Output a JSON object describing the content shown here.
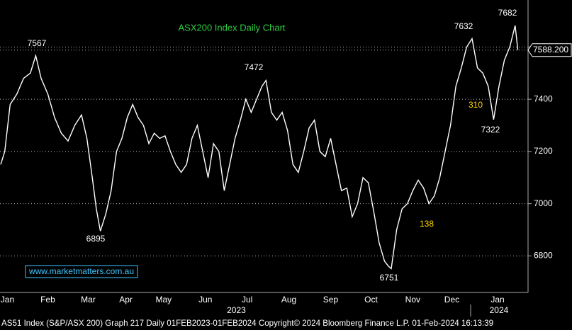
{
  "chart_data": {
    "type": "line",
    "title": "ASX200 Index Daily Chart",
    "title_color": "#2ecc40",
    "watermark": "www.marketmatters.com.au",
    "footer": "AS51 Index (S&P/ASX 200) Graph 217  Daily 01FEB2023-01FEB2024  Copyright© 2024 Bloomberg Finance L.P.  01-Feb-2024 16:13:39",
    "series": [
      {
        "name": "AS51 Index",
        "color": "#ffffff",
        "x": [
          10,
          13,
          17,
          22,
          27,
          32,
          36,
          40,
          45,
          50,
          55,
          60,
          65,
          70,
          74,
          78,
          81,
          84,
          88,
          92,
          96,
          100,
          104,
          108,
          112,
          116,
          120,
          124,
          128,
          132,
          136,
          140,
          144,
          148,
          152,
          156,
          160,
          164,
          168,
          172,
          176,
          180,
          184,
          188,
          192,
          196,
          200,
          204,
          207,
          211,
          215,
          219,
          223,
          227,
          231,
          235,
          239,
          243,
          247,
          251,
          255,
          259,
          263,
          267,
          271,
          275,
          279,
          283,
          287,
          291,
          295,
          298,
          300,
          304,
          308,
          312,
          316,
          320,
          324,
          328,
          332,
          336,
          340,
          344,
          348,
          352,
          356,
          360,
          364,
          368,
          372,
          376,
          380,
          384,
          388,
          392,
          394
        ],
        "values": [
          7150,
          7200,
          7380,
          7420,
          7480,
          7500,
          7567,
          7480,
          7420,
          7330,
          7270,
          7240,
          7300,
          7340,
          7250,
          7100,
          6980,
          6895,
          6960,
          7050,
          7200,
          7250,
          7330,
          7380,
          7330,
          7300,
          7230,
          7270,
          7250,
          7260,
          7200,
          7150,
          7120,
          7150,
          7250,
          7300,
          7200,
          7100,
          7230,
          7200,
          7050,
          7150,
          7250,
          7320,
          7400,
          7350,
          7400,
          7450,
          7472,
          7350,
          7320,
          7350,
          7280,
          7150,
          7120,
          7200,
          7290,
          7320,
          7200,
          7180,
          7250,
          7150,
          7050,
          7060,
          6950,
          7000,
          7100,
          7080,
          6970,
          6850,
          6780,
          6760,
          6751,
          6900,
          6980,
          7000,
          7050,
          7090,
          7060,
          7000,
          7030,
          7100,
          7200,
          7300,
          7450,
          7520,
          7600,
          7632,
          7520,
          7500,
          7450,
          7322,
          7450,
          7550,
          7600,
          7682,
          7588.2
        ]
      }
    ],
    "last_value": {
      "value": 7588.2,
      "label": "7588.200"
    },
    "annotations": [
      {
        "text": "7567",
        "color": "#ffffff"
      },
      {
        "text": "6895",
        "color": "#ffffff"
      },
      {
        "text": "7472",
        "color": "#ffffff"
      },
      {
        "text": "6751",
        "color": "#ffffff"
      },
      {
        "text": "7632",
        "color": "#ffffff"
      },
      {
        "text": "7682",
        "color": "#ffffff"
      },
      {
        "text": "7322",
        "color": "#ffffff"
      },
      {
        "text": "310",
        "color": "#ffd700"
      },
      {
        "text": "138",
        "color": "#ffd700"
      }
    ],
    "xlim": [
      9.5,
      401.6
    ],
    "xticks": [
      {
        "value": 15,
        "label": "Jan"
      },
      {
        "value": 45,
        "label": "Feb"
      },
      {
        "value": 75,
        "label": "Mar"
      },
      {
        "value": 103,
        "label": "Apr"
      },
      {
        "value": 131,
        "label": "May"
      },
      {
        "value": 162,
        "label": "Jun"
      },
      {
        "value": 193,
        "label": "Jul"
      },
      {
        "value": 224,
        "label": "Aug"
      },
      {
        "value": 255,
        "label": "Sep"
      },
      {
        "value": 285,
        "label": "Oct"
      },
      {
        "value": 316,
        "label": "Nov"
      },
      {
        "value": 345,
        "label": "Dec"
      },
      {
        "value": 379,
        "label": "Jan"
      }
    ],
    "years": [
      {
        "value": 185,
        "label": "2023"
      },
      {
        "value": 380,
        "label": "2024"
      }
    ],
    "ylim": [
      6660,
      7780
    ],
    "yticks": [
      6800,
      7000,
      7200,
      7400,
      7600
    ],
    "ytick_labels_shown": [
      6800,
      7000,
      7200,
      7400
    ],
    "grid": true
  }
}
